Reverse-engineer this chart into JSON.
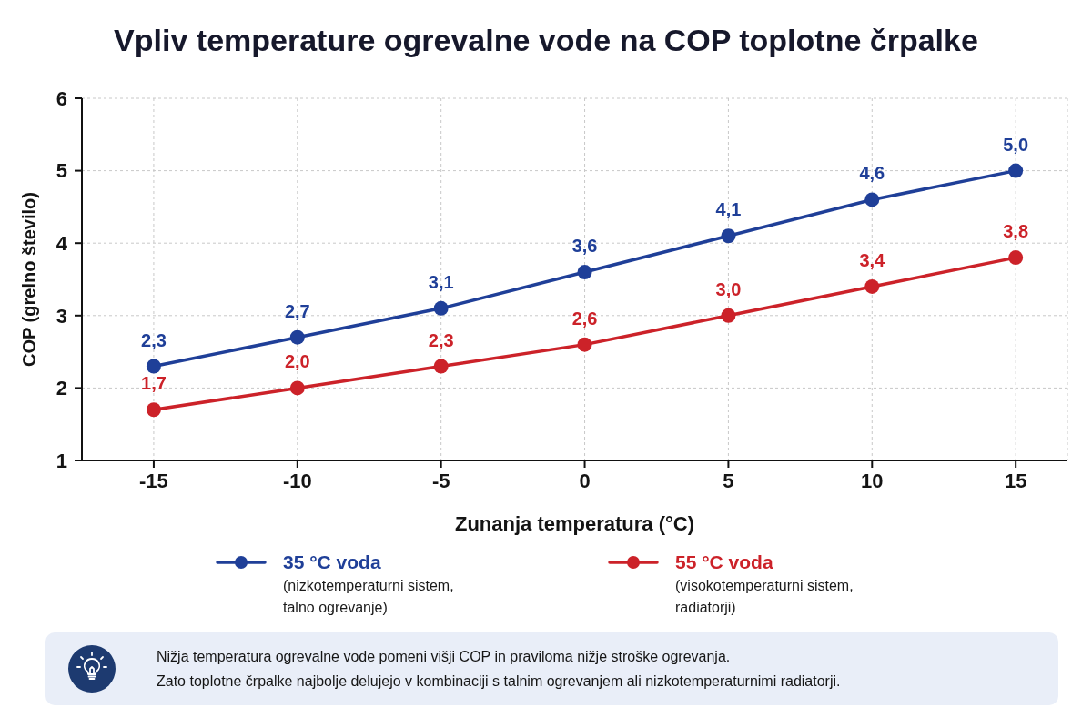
{
  "chart_data": {
    "type": "line",
    "title": "Vpliv temperature ogrevalne vode na COP toplotne črpalke",
    "xlabel": "Zunanja temperatura (°C)",
    "ylabel": "COP (grelno število)",
    "x": [
      -15,
      -10,
      -5,
      0,
      5,
      10,
      15
    ],
    "xlim": [
      -17.5,
      16.8
    ],
    "xticks": [
      -15,
      -10,
      -5,
      0,
      5,
      10,
      15
    ],
    "ylim": [
      1,
      6
    ],
    "yticks": [
      1,
      2,
      3,
      4,
      5,
      6
    ],
    "grid": true,
    "legend": "bottom",
    "marker": "circle",
    "line_style": "solid",
    "series": [
      {
        "name": "35 °C voda (nizkotemperaturni sistem, talno ogrevanje)",
        "color": "#1f3f98",
        "values": [
          2.3,
          2.7,
          3.1,
          3.6,
          4.1,
          4.6,
          5.0
        ],
        "value_labels": [
          "2,3",
          "2,7",
          "3,1",
          "3,6",
          "4,1",
          "4,6",
          "5,0"
        ]
      },
      {
        "name": "55 °C voda (visokotemperaturni sistem, radiatorji)",
        "color": "#cc2229",
        "values": [
          1.7,
          2.0,
          2.3,
          2.6,
          3.0,
          3.4,
          3.8
        ],
        "value_labels": [
          "1,7",
          "2,0",
          "2,3",
          "2,6",
          "3,0",
          "3,4",
          "3,8"
        ]
      }
    ],
    "annotations": [
      "Nižja temperatura ogrevalne vode pomeni višji COP in praviloma nižje stroške ogrevanja.",
      "Zato toplotne črpalke najbolje delujejo v kombinaciji s talnim ogrevanjem ali nizkotemperaturnimi radiatorji."
    ]
  }
}
